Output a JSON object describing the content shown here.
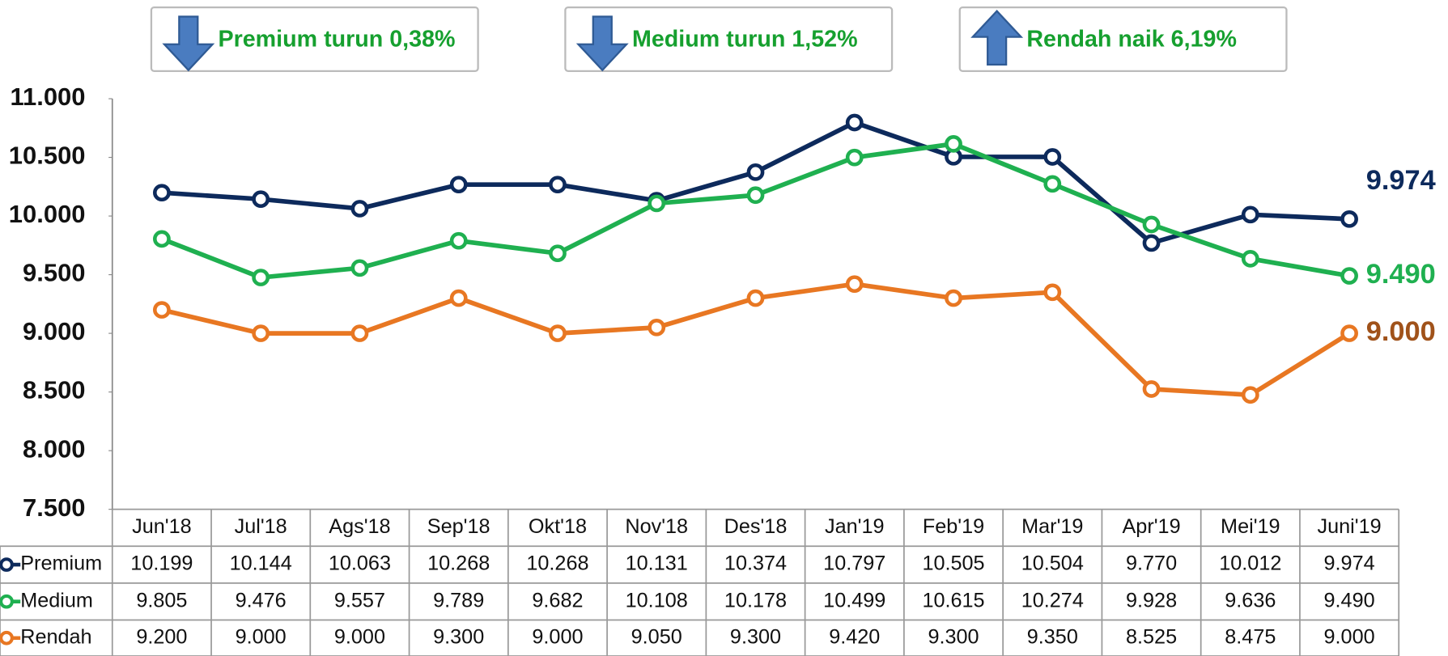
{
  "chart_data": {
    "type": "line",
    "categories": [
      "Jun'18",
      "Jul'18",
      "Ags'18",
      "Sep'18",
      "Okt'18",
      "Nov'18",
      "Des'18",
      "Jan'19",
      "Feb'19",
      "Mar'19",
      "Apr'19",
      "Mei'19",
      "Juni'19"
    ],
    "series": [
      {
        "name": "Premium",
        "color": "#0d2a5c",
        "label_color": "#0d2a5c",
        "values": [
          10199,
          10144,
          10063,
          10268,
          10268,
          10131,
          10374,
          10797,
          10505,
          10504,
          9770,
          10012,
          9974
        ],
        "value_labels": [
          "10.199",
          "10.144",
          "10.063",
          "10.268",
          "10.268",
          "10.131",
          "10.374",
          "10.797",
          "10.505",
          "10.504",
          "9.770",
          "10.012",
          "9.974"
        ]
      },
      {
        "name": "Medium",
        "color": "#1fb050",
        "label_color": "#1fb050",
        "values": [
          9805,
          9476,
          9557,
          9789,
          9682,
          10108,
          10178,
          10499,
          10615,
          10274,
          9928,
          9636,
          9490
        ],
        "value_labels": [
          "9.805",
          "9.476",
          "9.557",
          "9.789",
          "9.682",
          "10.108",
          "10.178",
          "10.499",
          "10.615",
          "10.274",
          "9.928",
          "9.636",
          "9.490"
        ]
      },
      {
        "name": "Rendah",
        "color": "#e87722",
        "label_color": "#a0521a",
        "values": [
          9200,
          9000,
          9000,
          9300,
          9000,
          9050,
          9300,
          9420,
          9300,
          9350,
          8525,
          8475,
          9000
        ],
        "value_labels": [
          "9.200",
          "9.000",
          "9.000",
          "9.300",
          "9.000",
          "9.050",
          "9.300",
          "9.420",
          "9.300",
          "9.350",
          "8.525",
          "8.475",
          "9.000"
        ]
      }
    ],
    "ylim": [
      7500,
      11000
    ],
    "yticks": [
      {
        "value": 7500,
        "label": "7.500"
      },
      {
        "value": 8000,
        "label": "8.000"
      },
      {
        "value": 8500,
        "label": "8.500"
      },
      {
        "value": 9000,
        "label": "9.000"
      },
      {
        "value": 9500,
        "label": "9.500"
      },
      {
        "value": 10000,
        "label": "10.000"
      },
      {
        "value": 10500,
        "label": "10.500"
      },
      {
        "value": 11000,
        "label": "11.000"
      }
    ],
    "annotations": [
      {
        "text": "Premium turun 0,38%",
        "direction": "down"
      },
      {
        "text": "Medium turun 1,52%",
        "direction": "down"
      },
      {
        "text": "Rendah naik 6,19%",
        "direction": "up"
      }
    ]
  }
}
